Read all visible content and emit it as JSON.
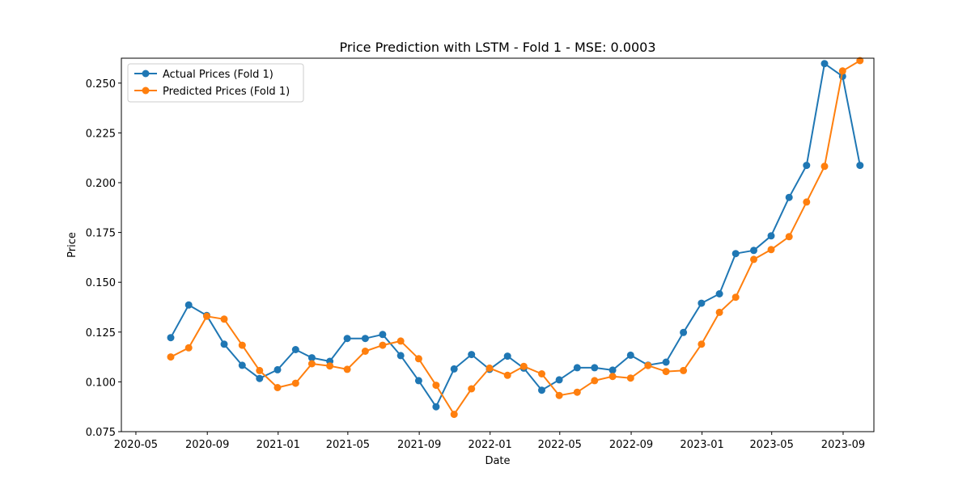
{
  "chart_data": {
    "type": "line",
    "title": "Price Prediction with LSTM - Fold 1 - MSE: 0.0003",
    "xlabel": "Date",
    "ylabel": "Price",
    "x_ticks": [
      "2020-05",
      "2020-09",
      "2021-01",
      "2021-05",
      "2021-09",
      "2022-01",
      "2022-05",
      "2022-09",
      "2023-01",
      "2023-05",
      "2023-09"
    ],
    "y_ticks": [
      "0.075",
      "0.100",
      "0.125",
      "0.150",
      "0.175",
      "0.200",
      "0.225",
      "0.250"
    ],
    "ylim": [
      0.075,
      0.2625
    ],
    "xlim": [
      "2020-04-06",
      "2023-10-24"
    ],
    "grid": false,
    "legend_position": "upper left",
    "x": [
      "2020-06-30",
      "2020-07-31",
      "2020-08-31",
      "2020-09-30",
      "2020-10-31",
      "2020-11-30",
      "2020-12-31",
      "2021-01-31",
      "2021-02-28",
      "2021-03-31",
      "2021-04-30",
      "2021-05-31",
      "2021-06-30",
      "2021-07-31",
      "2021-08-31",
      "2021-09-30",
      "2021-10-31",
      "2021-11-30",
      "2021-12-31",
      "2022-01-31",
      "2022-02-28",
      "2022-03-31",
      "2022-04-30",
      "2022-05-31",
      "2022-06-30",
      "2022-07-31",
      "2022-08-31",
      "2022-09-30",
      "2022-10-31",
      "2022-11-30",
      "2022-12-31",
      "2023-01-31",
      "2023-02-28",
      "2023-03-31",
      "2023-04-30",
      "2023-05-31",
      "2023-06-30",
      "2023-07-31",
      "2023-08-31",
      "2023-09-30"
    ],
    "series": [
      {
        "name": "Actual Prices (Fold 1)",
        "color": "#1f77b4",
        "values": [
          0.1222,
          0.1386,
          0.1333,
          0.1189,
          0.1083,
          0.1017,
          0.1061,
          0.1162,
          0.1121,
          0.1103,
          0.1218,
          0.1218,
          0.1238,
          0.1132,
          0.1006,
          0.0875,
          0.1065,
          0.1137,
          0.1063,
          0.1129,
          0.1069,
          0.0958,
          0.101,
          0.1071,
          0.1071,
          0.1059,
          0.1134,
          0.1084,
          0.1099,
          0.1248,
          0.1395,
          0.1442,
          0.1644,
          0.166,
          0.1733,
          0.1926,
          0.2087,
          0.2598,
          0.2534,
          0.2087
        ]
      },
      {
        "name": "Predicted Prices (Fold 1)",
        "color": "#ff7f0e",
        "values": [
          0.1125,
          0.1171,
          0.1329,
          0.1315,
          0.1184,
          0.1057,
          0.0971,
          0.0993,
          0.1091,
          0.108,
          0.1063,
          0.1154,
          0.1184,
          0.1205,
          0.1116,
          0.0983,
          0.0837,
          0.0965,
          0.1069,
          0.1033,
          0.1078,
          0.104,
          0.0932,
          0.0948,
          0.1006,
          0.1027,
          0.1019,
          0.1082,
          0.1052,
          0.1057,
          0.1189,
          0.1349,
          0.1425,
          0.1615,
          0.1664,
          0.1729,
          0.1903,
          0.2082,
          0.2561,
          0.2613
        ]
      }
    ]
  }
}
